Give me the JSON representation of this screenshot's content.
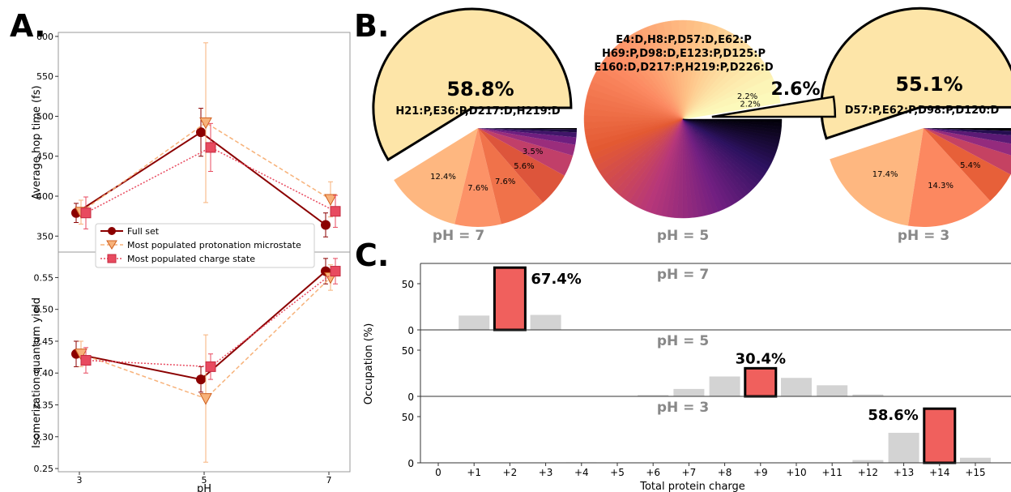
{
  "panel_labels": {
    "a": "A.",
    "b": "B.",
    "c": "C."
  },
  "colors": {
    "full_set": "#8b0000",
    "protonation": "#f7b27a",
    "charge": "#e84a5f",
    "charge_edge": "#c52a3f",
    "highlight_bar": "#f0605d",
    "gray_bar": "#d3d3d3",
    "pie_label": "#888888",
    "top_slice": "#fde5a8"
  },
  "chart_data": [
    {
      "type": "line",
      "panel": "A-top",
      "xlabel": "",
      "ylabel": "Average hop time (fs)",
      "x": [
        3,
        5,
        7
      ],
      "ylim": [
        330,
        605
      ],
      "yticks": [
        350,
        400,
        450,
        500,
        550,
        600
      ],
      "series": [
        {
          "name": "Full set",
          "values": [
            379,
            480,
            364
          ],
          "err": [
            12,
            30,
            15
          ],
          "marker": "circle"
        },
        {
          "name": "Most populated protonation microstate",
          "values": [
            380,
            492,
            396
          ],
          "err": [
            15,
            100,
            22
          ],
          "marker": "triangle"
        },
        {
          "name": "Most populated charge state",
          "values": [
            379,
            461,
            381
          ],
          "err": [
            20,
            30,
            20
          ],
          "marker": "square"
        }
      ]
    },
    {
      "type": "line",
      "panel": "A-bottom",
      "xlabel": "pH",
      "ylabel": "Isomerization quantum yield",
      "x": [
        3,
        5,
        7
      ],
      "xticks": [
        "3",
        "5",
        "7"
      ],
      "ylim": [
        0.245,
        0.59
      ],
      "yticks": [
        0.25,
        0.3,
        0.35,
        0.4,
        0.45,
        0.5,
        0.55
      ],
      "series": [
        {
          "name": "Full set",
          "values": [
            0.43,
            0.39,
            0.56
          ],
          "err": [
            0.02,
            0.02,
            0.02
          ]
        },
        {
          "name": "Most populated protonation microstate",
          "values": [
            0.43,
            0.36,
            0.55
          ],
          "err": [
            0.02,
            0.1,
            0.02
          ]
        },
        {
          "name": "Most populated charge state",
          "values": [
            0.42,
            0.41,
            0.56
          ],
          "err": [
            0.02,
            0.02,
            0.02
          ]
        }
      ]
    },
    {
      "type": "pie",
      "panel": "B-pH7",
      "title": "pH = 7",
      "top_value": "58.8%",
      "top_label": "H21:P,E36:P,D217:D,H219:D",
      "slices": [
        58.8,
        12.4,
        7.6,
        7.6,
        5.6,
        3.5,
        1.8,
        1.2,
        0.8,
        0.5,
        0.2
      ],
      "labels": [
        "",
        "12.4%",
        "7.6%",
        "7.6%",
        "5.6%",
        "3.5%",
        "",
        "",
        "",
        "",
        ""
      ]
    },
    {
      "type": "pie",
      "panel": "B-pH5",
      "title": "pH = 5",
      "top_value": "2.6%",
      "top_label_lines": [
        "E4:D,H8:P,D57:D,E62:P",
        "H69:P,D98:D,E123:P,D125:P",
        "E160:D,D217:P,H219:P,D226:D"
      ],
      "slices_first": [
        2.6,
        2.2,
        2.2
      ],
      "labels": [
        "",
        "2.2%",
        "2.2%"
      ],
      "remaining_slices_approx": 95
    },
    {
      "type": "pie",
      "panel": "B-pH3",
      "title": "pH = 3",
      "top_value": "55.1%",
      "top_label": "D57:P,E62:P,D98:P,D120:D",
      "slices": [
        55.1,
        17.4,
        14.3,
        5.4,
        3.0,
        2.0,
        1.5,
        0.8,
        0.5
      ],
      "labels": [
        "",
        "17.4%",
        "14.3%",
        "5.4%",
        "",
        "",
        "",
        "",
        ""
      ]
    },
    {
      "type": "bar",
      "panel": "C",
      "xlabel": "Total protein charge",
      "ylabel": "Occupation (%)",
      "categories": [
        "0",
        "+1",
        "+2",
        "+3",
        "+4",
        "+5",
        "+6",
        "+7",
        "+8",
        "+9",
        "+10",
        "+11",
        "+12",
        "+13",
        "+14",
        "+15"
      ],
      "yticks": [
        0,
        50
      ],
      "series": [
        {
          "name": "pH = 7",
          "values": [
            0,
            15.5,
            67.4,
            16.2,
            0,
            0,
            0,
            0,
            0,
            0,
            0,
            0,
            0,
            0,
            0,
            0
          ],
          "highlight_index": 2,
          "highlight_label": "67.4%"
        },
        {
          "name": "pH = 5",
          "values": [
            0,
            0,
            0,
            0,
            0,
            0,
            1.5,
            8,
            21.5,
            30.4,
            20,
            12,
            2,
            0,
            0,
            0
          ],
          "highlight_index": 9,
          "highlight_label": "30.4%"
        },
        {
          "name": "pH = 3",
          "values": [
            0,
            0,
            0,
            0,
            0.5,
            0,
            0,
            0,
            0,
            0,
            0,
            0,
            3,
            32.5,
            58.6,
            5.5
          ],
          "highlight_index": 14,
          "highlight_label": "58.6%"
        }
      ]
    }
  ]
}
